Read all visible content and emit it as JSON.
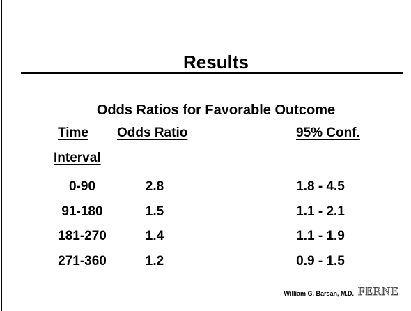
{
  "header": {
    "title": "Results"
  },
  "subtitle": "Odds Ratios for Favorable Outcome",
  "table": {
    "headers": [
      [
        "Time",
        "Interval"
      ],
      [
        "Odds Ratio"
      ],
      [
        "95% Conf."
      ]
    ],
    "rows": [
      [
        "0-90",
        "2.8",
        "1.8 - 4.5"
      ],
      [
        "91-180",
        "1.5",
        "1.1 - 2.1"
      ],
      [
        "181-270",
        "1.4",
        "1.1 - 1.9"
      ],
      [
        "271-360",
        "1.2",
        "0.9 - 1.5"
      ]
    ]
  },
  "footer": {
    "author": "William G. Barsan, M.D.",
    "logo": "FERNE"
  }
}
